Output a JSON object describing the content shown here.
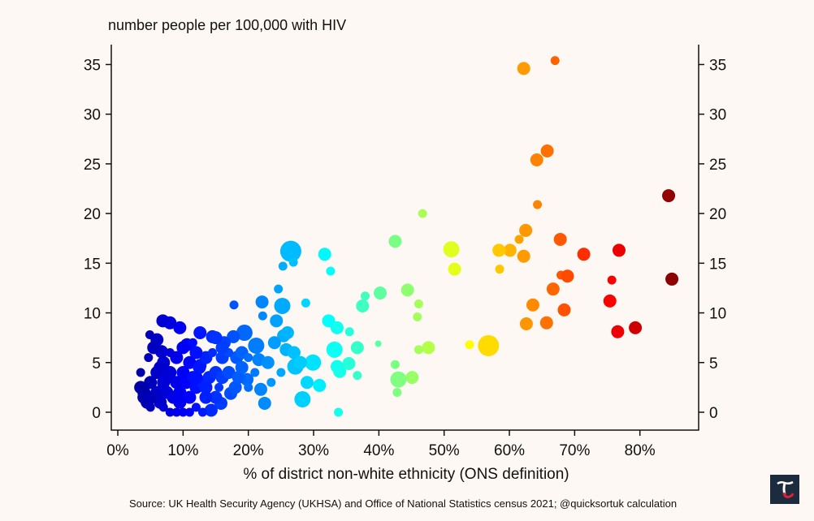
{
  "chart_data": {
    "type": "scatter",
    "title": "number people per 100,000 with HIV",
    "xlabel": "% of district non-white ethnicity (ONS definition)",
    "ylabel": "number people per 100,000 with HIV",
    "xlim": [
      -1,
      89
    ],
    "ylim": [
      -1.8,
      37
    ],
    "x_ticks": [
      0,
      10,
      20,
      30,
      40,
      50,
      60,
      70,
      80
    ],
    "x_tick_labels": [
      "0%",
      "10%",
      "20%",
      "30%",
      "40%",
      "50%",
      "60%",
      "70%",
      "80%"
    ],
    "y_ticks": [
      0,
      5,
      10,
      15,
      20,
      25,
      30,
      35
    ],
    "y_tick_labels": [
      "0",
      "5",
      "10",
      "15",
      "20",
      "25",
      "30",
      "35"
    ],
    "grid": false,
    "color_encoding": "jet colormap by x value",
    "size_encoding": "relative marker size",
    "points": [
      [
        62.2,
        34.6,
        3
      ],
      [
        67.0,
        35.4,
        2
      ],
      [
        65.8,
        26.3,
        3
      ],
      [
        64.2,
        25.4,
        3
      ],
      [
        64.3,
        20.9,
        2
      ],
      [
        84.4,
        21.8,
        3
      ],
      [
        84.9,
        13.4,
        3
      ],
      [
        76.8,
        16.3,
        3
      ],
      [
        75.7,
        13.3,
        2
      ],
      [
        75.4,
        11.2,
        3
      ],
      [
        76.6,
        8.1,
        3
      ],
      [
        79.3,
        8.5,
        3
      ],
      [
        71.4,
        15.9,
        3
      ],
      [
        67.8,
        17.4,
        3
      ],
      [
        67.9,
        13.8,
        2
      ],
      [
        68.9,
        13.7,
        3
      ],
      [
        66.7,
        12.4,
        3
      ],
      [
        68.4,
        10.3,
        3
      ],
      [
        63.6,
        10.8,
        3
      ],
      [
        65.7,
        9.0,
        3
      ],
      [
        62.6,
        8.9,
        3
      ],
      [
        62.5,
        18.3,
        3
      ],
      [
        61.5,
        17.4,
        2
      ],
      [
        62.2,
        15.7,
        3
      ],
      [
        60.1,
        16.3,
        3
      ],
      [
        58.4,
        16.3,
        3
      ],
      [
        58.5,
        14.4,
        2
      ],
      [
        56.8,
        6.7,
        5
      ],
      [
        53.9,
        6.8,
        2
      ],
      [
        51.1,
        16.4,
        4
      ],
      [
        51.6,
        14.4,
        3
      ],
      [
        46.7,
        20.0,
        2
      ],
      [
        42.5,
        17.2,
        3
      ],
      [
        44.4,
        12.3,
        3
      ],
      [
        40.2,
        12.0,
        3
      ],
      [
        37.9,
        11.7,
        2
      ],
      [
        37.5,
        10.7,
        3
      ],
      [
        46.1,
        10.9,
        2
      ],
      [
        45.9,
        9.6,
        2
      ],
      [
        47.6,
        6.5,
        3
      ],
      [
        46.1,
        6.3,
        2
      ],
      [
        39.9,
        6.9,
        1
      ],
      [
        42.5,
        4.8,
        2
      ],
      [
        43.0,
        3.3,
        4
      ],
      [
        45.1,
        3.5,
        3
      ],
      [
        42.8,
        2.0,
        2
      ],
      [
        36.7,
        6.5,
        3
      ],
      [
        36.7,
        3.7,
        2
      ],
      [
        35.4,
        4.9,
        3
      ],
      [
        35.5,
        8.1,
        2
      ],
      [
        33.6,
        4.6,
        3
      ],
      [
        34.0,
        4.1,
        3
      ],
      [
        33.2,
        6.3,
        4
      ],
      [
        33.6,
        8.5,
        3
      ],
      [
        32.3,
        9.2,
        3
      ],
      [
        31.7,
        15.9,
        3
      ],
      [
        32.6,
        14.2,
        2
      ],
      [
        28.8,
        11.0,
        2
      ],
      [
        26.5,
        16.2,
        5
      ],
      [
        26.9,
        15.1,
        2
      ],
      [
        25.3,
        14.7,
        2
      ],
      [
        24.6,
        12.4,
        2
      ],
      [
        25.2,
        10.7,
        4
      ],
      [
        24.3,
        9.2,
        3
      ],
      [
        29.9,
        5.0,
        4
      ],
      [
        28.3,
        1.3,
        4
      ],
      [
        33.8,
        0.0,
        2
      ],
      [
        30.9,
        2.7,
        3
      ],
      [
        29.0,
        3.0,
        3
      ],
      [
        27.2,
        4.6,
        4
      ],
      [
        25.4,
        7.7,
        3
      ],
      [
        25.8,
        6.3,
        3
      ],
      [
        22.1,
        11.1,
        3
      ],
      [
        22.2,
        9.7,
        2
      ],
      [
        19.4,
        8.0,
        4
      ],
      [
        21.2,
        6.7,
        4
      ],
      [
        21.6,
        5.3,
        3
      ],
      [
        21.9,
        2.3,
        3
      ],
      [
        22.5,
        0.9,
        3
      ],
      [
        19.8,
        3.3,
        3
      ],
      [
        17.8,
        10.8,
        2
      ],
      [
        17.7,
        7.6,
        3
      ],
      [
        18.2,
        5.5,
        3
      ],
      [
        16.3,
        7.0,
        3
      ],
      [
        17.3,
        1.9,
        3
      ],
      [
        15.8,
        0.9,
        3
      ],
      [
        14.3,
        0.2,
        3
      ],
      [
        15.0,
        1.5,
        3
      ],
      [
        14.5,
        7.6,
        3
      ],
      [
        12.6,
        8.0,
        3
      ],
      [
        12.6,
        4.7,
        3
      ],
      [
        10.6,
        6.8,
        3
      ],
      [
        9.5,
        8.5,
        3
      ],
      [
        6.9,
        9.2,
        3
      ],
      [
        4.9,
        7.8,
        2
      ],
      [
        6.0,
        7.3,
        3
      ],
      [
        6.7,
        6.1,
        3
      ],
      [
        4.7,
        5.5,
        2
      ],
      [
        4,
        2,
        3
      ],
      [
        4.5,
        1,
        3
      ],
      [
        5,
        3,
        3
      ],
      [
        5,
        0.5,
        2
      ],
      [
        6,
        2,
        3
      ],
      [
        6,
        4,
        3
      ],
      [
        6.5,
        1,
        3
      ],
      [
        7,
        3,
        3
      ],
      [
        7,
        5,
        3
      ],
      [
        7.5,
        2,
        3
      ],
      [
        8,
        0,
        2
      ],
      [
        8,
        4,
        3
      ],
      [
        8.5,
        1.5,
        3
      ],
      [
        9,
        3,
        3
      ],
      [
        9,
        5.5,
        3
      ],
      [
        9.5,
        2,
        3
      ],
      [
        10,
        0,
        2
      ],
      [
        10,
        4,
        3
      ],
      [
        10.5,
        3,
        3
      ],
      [
        11,
        1.5,
        3
      ],
      [
        11,
        5,
        3
      ],
      [
        11.5,
        3.5,
        3
      ],
      [
        12,
        0.5,
        2
      ],
      [
        12,
        2.5,
        3
      ],
      [
        12.5,
        4.5,
        3
      ],
      [
        13,
        3,
        3
      ],
      [
        13.5,
        1.5,
        3
      ],
      [
        13.5,
        5.5,
        3
      ],
      [
        14,
        3.5,
        3
      ],
      [
        15,
        4,
        3
      ],
      [
        15.5,
        2.5,
        2
      ],
      [
        16,
        3.5,
        3
      ],
      [
        16,
        5.5,
        3
      ],
      [
        17,
        4,
        3
      ],
      [
        17,
        6,
        2
      ],
      [
        18,
        2.5,
        3
      ],
      [
        18.5,
        3.5,
        3
      ],
      [
        19,
        6,
        3
      ],
      [
        20,
        5.5,
        2
      ],
      [
        20,
        2.5,
        2
      ],
      [
        8,
        6,
        2
      ],
      [
        10,
        6.5,
        3
      ],
      [
        11.5,
        7,
        2
      ],
      [
        12,
        6,
        3
      ],
      [
        14.5,
        6,
        2
      ],
      [
        16,
        6.5,
        3
      ],
      [
        5.5,
        6.5,
        3
      ],
      [
        6.5,
        4.5,
        3
      ],
      [
        3.5,
        2.5,
        3
      ],
      [
        4,
        1.5,
        3
      ],
      [
        7,
        0.5,
        2
      ],
      [
        9,
        0,
        2
      ],
      [
        11,
        0,
        2
      ],
      [
        13,
        0,
        2
      ],
      [
        8,
        9,
        3
      ],
      [
        9.5,
        8.5,
        2
      ],
      [
        15,
        7.5,
        3
      ],
      [
        23,
        5,
        3
      ],
      [
        24,
        7,
        3
      ],
      [
        23.5,
        3,
        2
      ],
      [
        26,
        8,
        3
      ],
      [
        27,
        6,
        3
      ],
      [
        28,
        5,
        3
      ],
      [
        25,
        4,
        2
      ],
      [
        3.5,
        4,
        2
      ],
      [
        5,
        1.5,
        3
      ],
      [
        7.5,
        3.5,
        3
      ],
      [
        9.5,
        1,
        3
      ],
      [
        12,
        3.5,
        3
      ],
      [
        13.5,
        2.5,
        3
      ],
      [
        19,
        4.5,
        3
      ],
      [
        21,
        4,
        2
      ]
    ]
  },
  "source": "Source: UK Health Security Agency (UKHSA) and Office of National Statistics census 2021; @quicksortuk calculation",
  "logo": {
    "letter": "T",
    "bg": "#1c2b3e",
    "accent": "#e02030"
  }
}
